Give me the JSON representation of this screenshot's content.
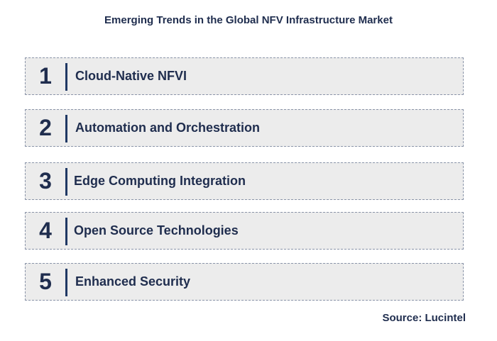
{
  "title": "Emerging Trends in the Global NFV Infrastructure Market",
  "trends": [
    {
      "number": "1",
      "label": "Cloud-Native NFVI"
    },
    {
      "number": "2",
      "label": "Automation and Orchestration"
    },
    {
      "number": "3",
      "label": "Edge Computing Integration"
    },
    {
      "number": "4",
      "label": "Open Source Technologies"
    },
    {
      "number": "5",
      "label": "Enhanced Security"
    }
  ],
  "source": "Source: Lucintel",
  "colors": {
    "text": "#1f2d4e",
    "accent_bar": "#1f3864",
    "box_background": "#ececec",
    "box_border": "#8a94a8"
  }
}
